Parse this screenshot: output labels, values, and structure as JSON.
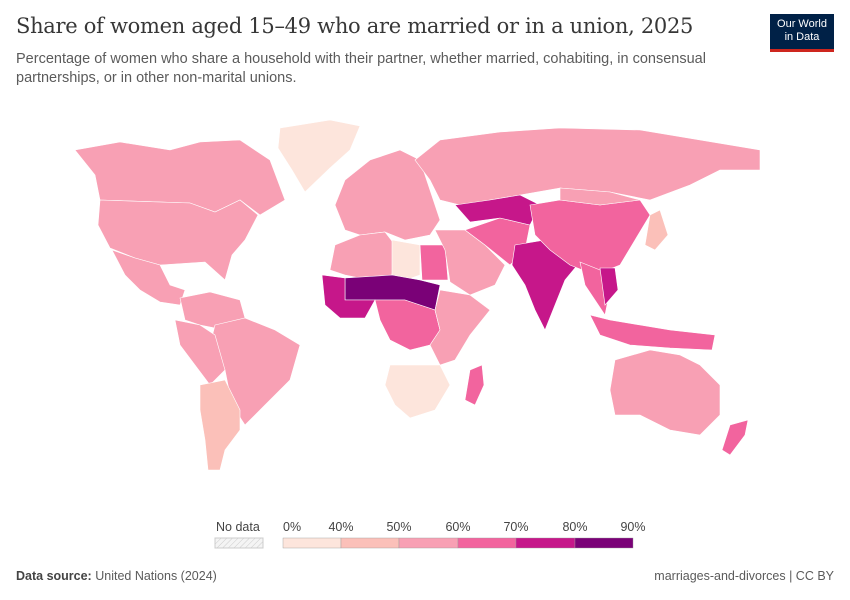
{
  "title": "Share of women aged 15–49 who are married or in a union, 2025",
  "subtitle": "Percentage of women who share a household with their partner, whether married, cohabiting, in consensual partnerships, or in other non-marital unions.",
  "logo": {
    "line1": "Our World",
    "line2": "in Data",
    "bg": "#002147",
    "accent": "#ce261e"
  },
  "legend": {
    "no_data_label": "No data",
    "ticks": [
      "0%",
      "40%",
      "50%",
      "60%",
      "70%",
      "80%",
      "90%"
    ],
    "bins": [
      {
        "range": "0–40%",
        "color": "#fde5dc"
      },
      {
        "range": "40–50%",
        "color": "#fbc0b9"
      },
      {
        "range": "50–60%",
        "color": "#f8a0b4"
      },
      {
        "range": "60–70%",
        "color": "#f2649e"
      },
      {
        "range": "70–80%",
        "color": "#c6178a"
      },
      {
        "range": "80–90%",
        "color": "#7a0177"
      }
    ]
  },
  "chart_data": {
    "type": "choropleth",
    "title": "Share of women aged 15–49 who are married or in a union, 2025",
    "regions": [
      {
        "name": "Greenland",
        "bin": "0–40%"
      },
      {
        "name": "Canada",
        "bin": "50–60%"
      },
      {
        "name": "United States",
        "bin": "50–60%"
      },
      {
        "name": "Mexico",
        "bin": "50–60%"
      },
      {
        "name": "Northern South America",
        "bin": "50–60%"
      },
      {
        "name": "Brazil",
        "bin": "50–60%"
      },
      {
        "name": "Peru/Bolivia",
        "bin": "50–60%"
      },
      {
        "name": "Argentina/Chile",
        "bin": "40–50%"
      },
      {
        "name": "Europe",
        "bin": "50–60%"
      },
      {
        "name": "Russia",
        "bin": "50–60%"
      },
      {
        "name": "Northwest Africa",
        "bin": "50–60%"
      },
      {
        "name": "Libya",
        "bin": "0–40%"
      },
      {
        "name": "Egypt",
        "bin": "60–70%"
      },
      {
        "name": "Sahel",
        "bin": "80–90%"
      },
      {
        "name": "West Africa",
        "bin": "70–80%"
      },
      {
        "name": "Central Africa",
        "bin": "60–70%"
      },
      {
        "name": "East Africa",
        "bin": "50–60%"
      },
      {
        "name": "Southern Africa",
        "bin": "0–40%"
      },
      {
        "name": "Madagascar",
        "bin": "60–70%"
      },
      {
        "name": "Middle East",
        "bin": "50–60%"
      },
      {
        "name": "Iran/Afghanistan",
        "bin": "60–70%"
      },
      {
        "name": "Central Asia",
        "bin": "70–80%"
      },
      {
        "name": "India",
        "bin": "70–80%"
      },
      {
        "name": "China",
        "bin": "60–70%"
      },
      {
        "name": "Mongolia",
        "bin": "50–60%"
      },
      {
        "name": "Japan",
        "bin": "40–50%"
      },
      {
        "name": "Southeast Asia",
        "bin": "60–70%"
      },
      {
        "name": "Vietnam",
        "bin": "70–80%"
      },
      {
        "name": "Indonesia",
        "bin": "60–70%"
      },
      {
        "name": "Australia",
        "bin": "50–60%"
      },
      {
        "name": "New Zealand",
        "bin": "60–70%"
      }
    ]
  },
  "footer": {
    "source_label": "Data source:",
    "source": "United Nations (2024)",
    "right": "marriages-and-divorces | CC BY"
  }
}
